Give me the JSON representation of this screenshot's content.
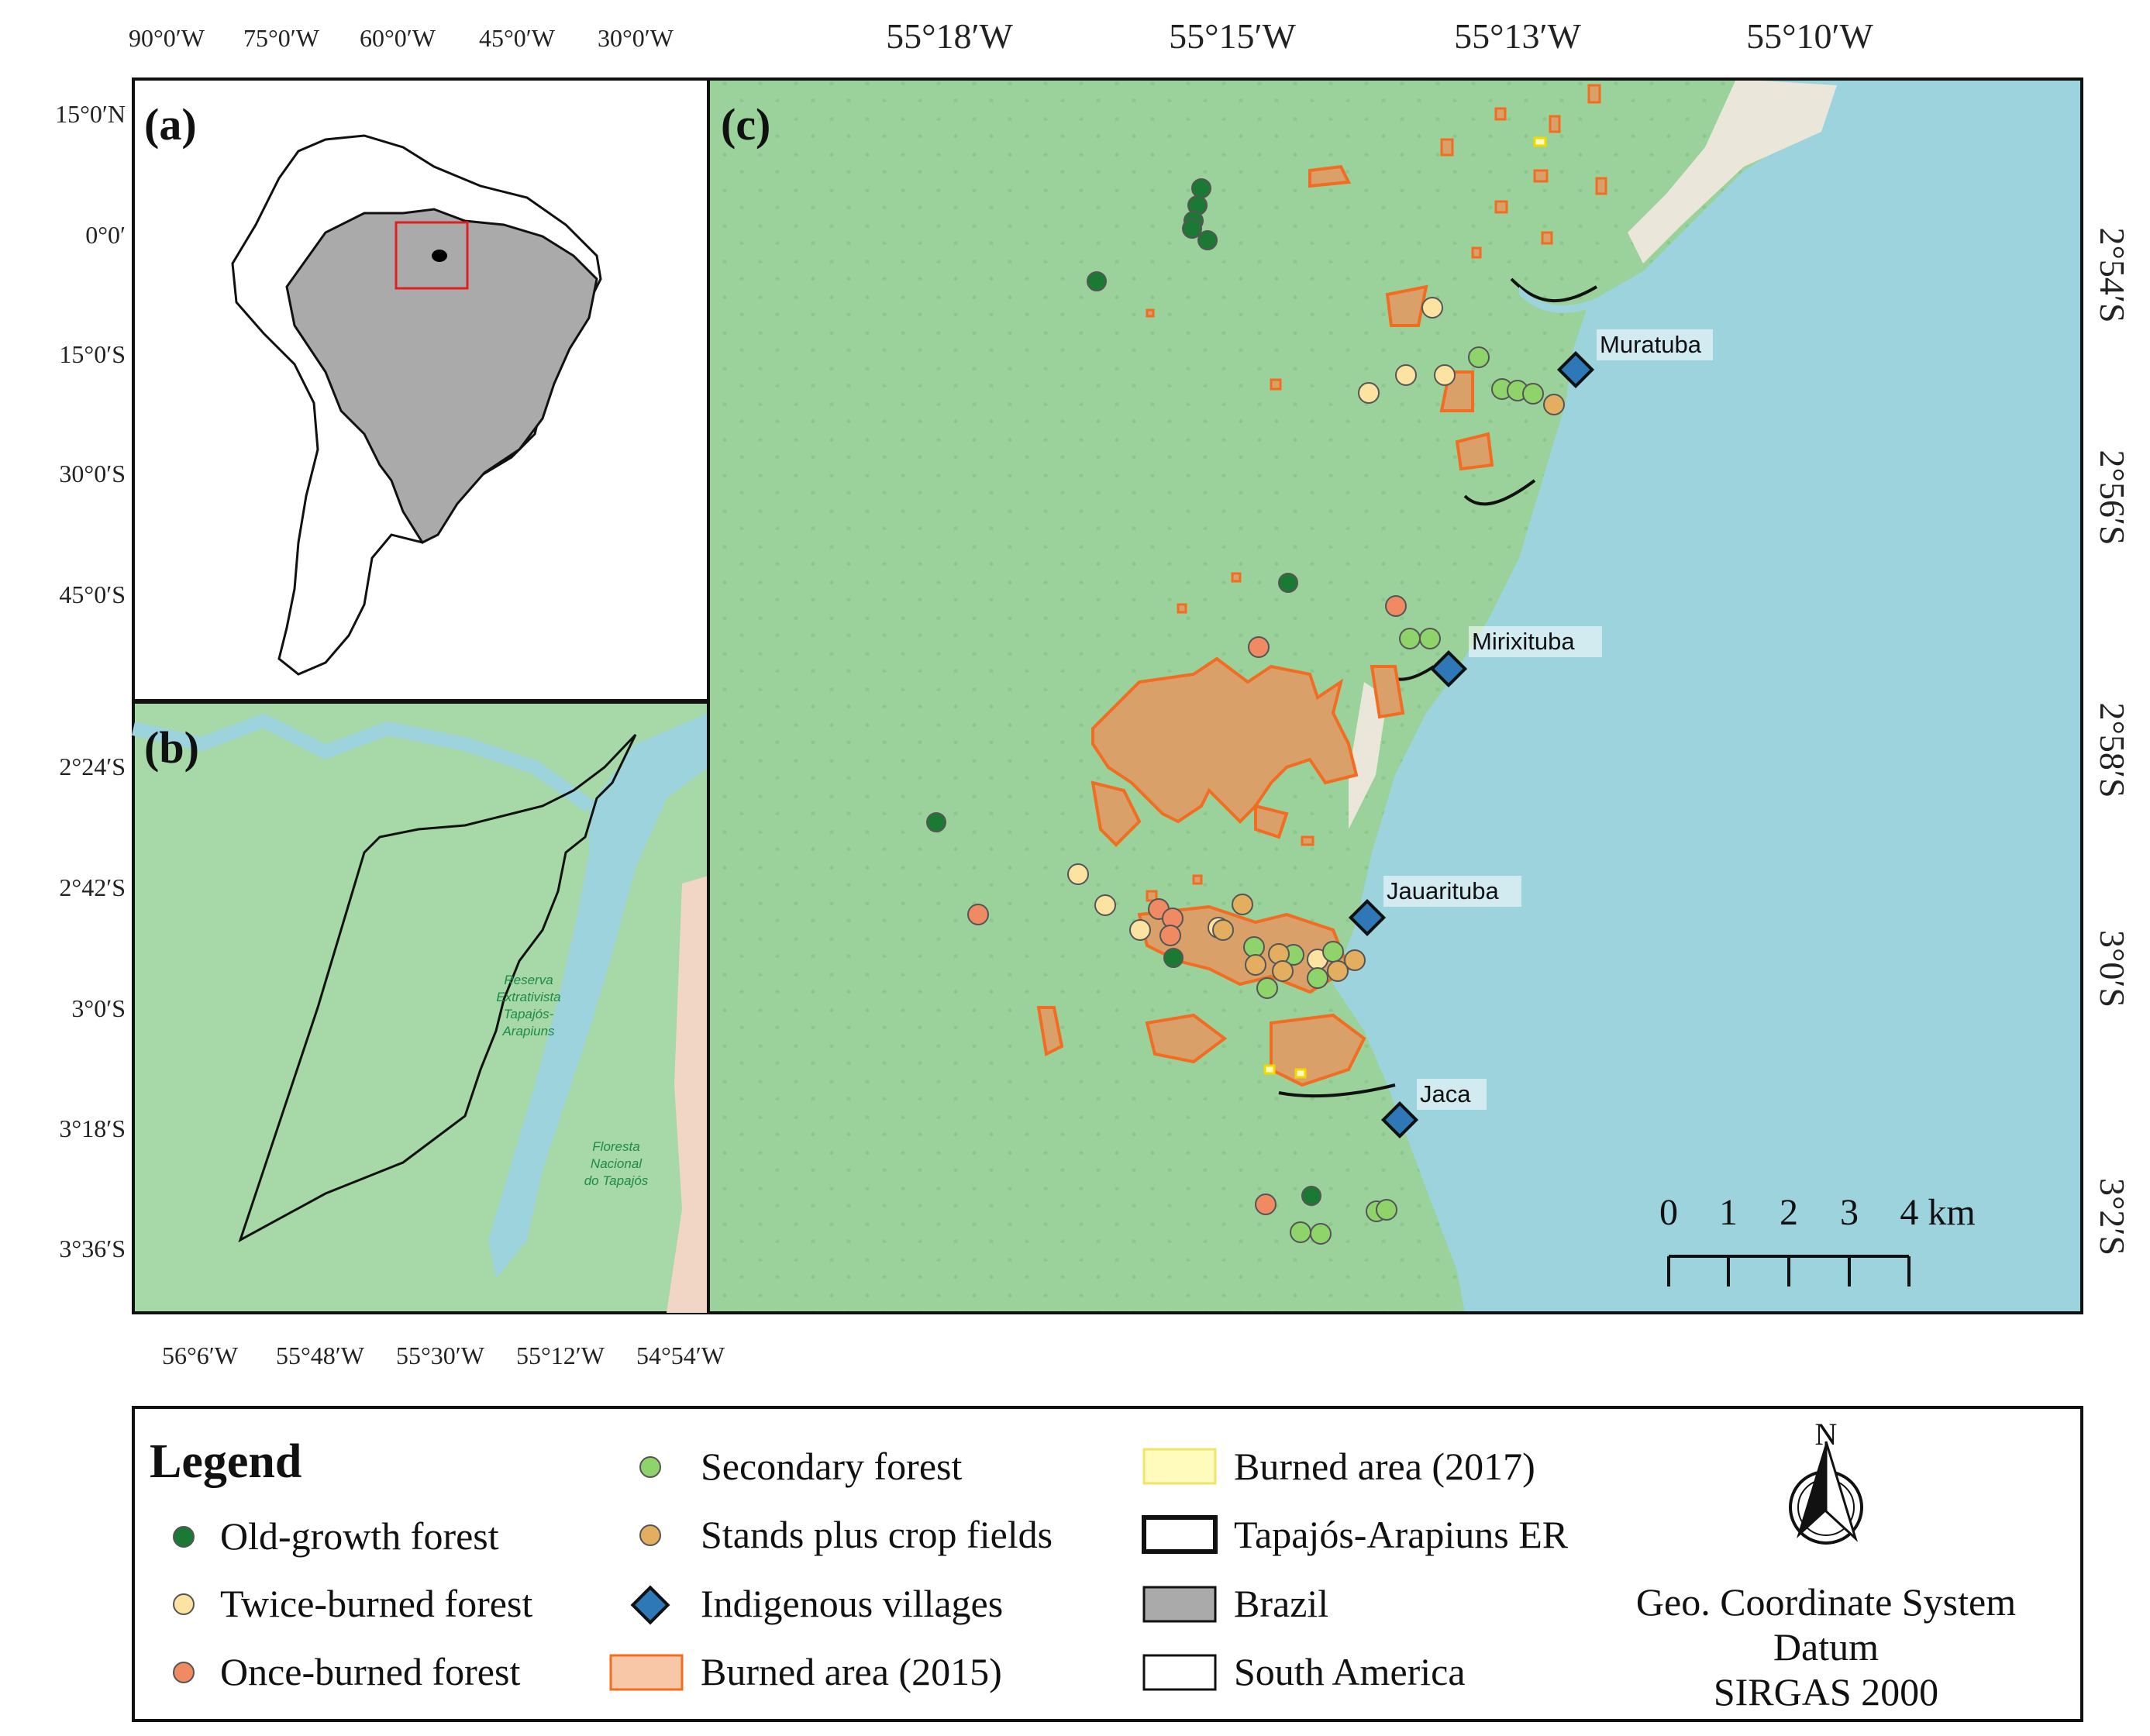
{
  "panels": {
    "a": {
      "label": "(a)",
      "lon_ticks": [
        "90°0′W",
        "75°0′W",
        "60°0′W",
        "45°0′W",
        "30°0′W"
      ],
      "lat_ticks": [
        "15°0′N",
        "0°0′",
        "15°0′S",
        "30°0′S",
        "45°0′S"
      ]
    },
    "b": {
      "label": "(b)",
      "lon_ticks": [
        "56°6′W",
        "55°48′W",
        "55°30′W",
        "55°12′W",
        "54°54′W"
      ],
      "lat_ticks": [
        "2°24′S",
        "2°42′S",
        "3°0′S",
        "3°18′S",
        "3°36′S"
      ],
      "map_labels": {
        "reserve": [
          "Reserva",
          "Extrativista",
          "Tapajós-",
          "Arapiuns"
        ],
        "flona": [
          "Floresta",
          "Nacional",
          "do Tapajós"
        ]
      }
    },
    "c": {
      "label": "(c)",
      "lon_ticks": [
        "55°18′W",
        "55°15′W",
        "55°13′W",
        "55°10′W"
      ],
      "lat_ticks": [
        "2°54′S",
        "2°56′S",
        "2°58′S",
        "3°0′S",
        "3°2′S"
      ],
      "villages": [
        "Muratuba",
        "Mirixituba",
        "Jauarituba",
        "Jaca"
      ],
      "scale_labels": [
        "0",
        "1",
        "2",
        "3",
        "4 km"
      ]
    }
  },
  "legend": {
    "title": "Legend",
    "items": [
      {
        "label": "Old-growth forest",
        "color": "#1a7a33",
        "symbol": "circle"
      },
      {
        "label": "Twice-burned forest",
        "color": "#fde3a2",
        "symbol": "circle"
      },
      {
        "label": "Once-burned forest",
        "color": "#f08a63",
        "symbol": "circle"
      },
      {
        "label": "Secondary forest",
        "color": "#8ed46b",
        "symbol": "circle"
      },
      {
        "label": "Stands plus crop fields",
        "color": "#e3ae5f",
        "symbol": "circle"
      },
      {
        "label": "Indigenous villages",
        "color": "#2f78b7",
        "symbol": "diamond"
      },
      {
        "label": "Burned area (2015)",
        "color": "#f8c7a8",
        "symbol": "rect-orange-border"
      },
      {
        "label": "Burned area (2017)",
        "color": "#fffbbc",
        "symbol": "rect-yellow-border"
      },
      {
        "label": "Tapajós-Arapiuns ER",
        "color": "#ffffff",
        "symbol": "rect-black-border"
      },
      {
        "label": "Brazil",
        "color": "#aaaaaa",
        "symbol": "rect"
      },
      {
        "label": "South America",
        "color": "#ffffff",
        "symbol": "rect"
      }
    ],
    "north_label": "N",
    "crs": [
      "Geo. Coordinate System",
      "Datum",
      "SIRGAS 2000"
    ]
  },
  "colors": {
    "forest": "#9bd29b",
    "water": "#9cd3dd",
    "burn_2015": "#d9a06a",
    "burn_edge": "#f26d21",
    "brazil": "#aaaaaa"
  }
}
